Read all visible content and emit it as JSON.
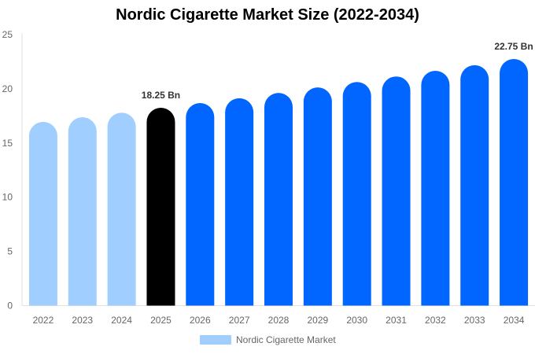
{
  "chart_data": {
    "type": "bar",
    "title": "Nordic Cigarette Market Size (2022-2034)",
    "categories": [
      "2022",
      "2023",
      "2024",
      "2025",
      "2026",
      "2027",
      "2028",
      "2029",
      "2030",
      "2031",
      "2032",
      "2033",
      "2034"
    ],
    "series": [
      {
        "name": "Nordic Cigarette Market",
        "values": [
          16.95,
          17.38,
          17.8,
          18.25,
          18.69,
          19.13,
          19.62,
          20.13,
          20.63,
          21.14,
          21.66,
          22.18,
          22.75
        ]
      }
    ],
    "data_labels": {
      "3": "18.25 Bn",
      "12": "22.75 Bn"
    },
    "ylim": [
      0,
      25
    ],
    "yticks": [
      0,
      5,
      10,
      15,
      20,
      25
    ],
    "grid": false,
    "legend": "bottom",
    "colors": {
      "historical": "#a0cfff",
      "current": "#000000",
      "forecast": "#0066ff"
    }
  }
}
